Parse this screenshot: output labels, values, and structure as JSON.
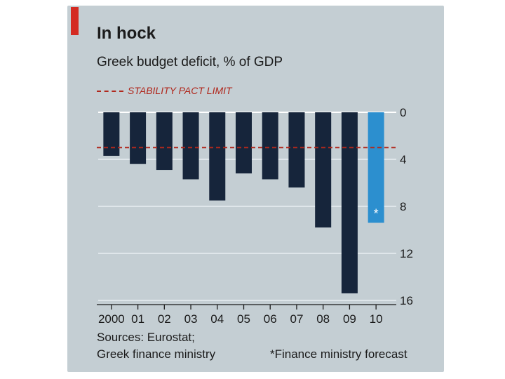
{
  "colors": {
    "accent": "#d42b22",
    "bar": "#16253b",
    "forecast_bar": "#2c8fcf",
    "limit_line": "#b0281d",
    "text": "#1b1b1b"
  },
  "chart_data": {
    "type": "bar",
    "title": "In hock",
    "subtitle": "Greek budget deficit, % of GDP",
    "legend_label": "STABILITY PACT LIMIT",
    "categories": [
      "2000",
      "01",
      "02",
      "03",
      "04",
      "05",
      "06",
      "07",
      "08",
      "09",
      "10"
    ],
    "values": [
      3.7,
      4.4,
      4.9,
      5.7,
      7.5,
      5.2,
      5.7,
      6.4,
      9.8,
      15.4,
      9.4
    ],
    "forecast_index": 10,
    "forecast_marker": "*",
    "reference_line": 3,
    "ylim": [
      0,
      16
    ],
    "yticks": [
      0,
      4,
      8,
      12,
      16
    ],
    "ytick_labels": [
      "0",
      "4",
      "8",
      "12",
      "16"
    ],
    "y_axis_side": "right",
    "y_inverted": true,
    "xlabel": "",
    "ylabel": ""
  },
  "sources": {
    "line1": "Sources: Eurostat;",
    "line2": "Greek finance ministry"
  },
  "footnote": "*Finance ministry forecast"
}
